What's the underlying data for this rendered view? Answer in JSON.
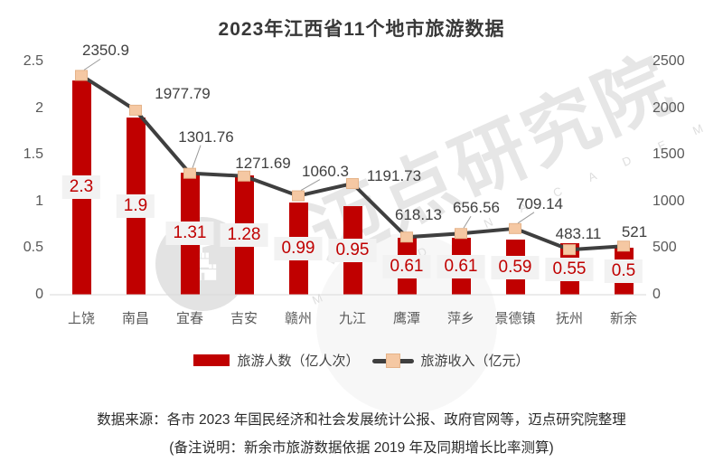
{
  "title": "2023年江西省11个地市旅游数据",
  "chart_data": {
    "type": "bar",
    "subtype": "bar-line-combo",
    "categories": [
      "上饶",
      "南昌",
      "宜春",
      "吉安",
      "赣州",
      "九江",
      "鹰潭",
      "萍乡",
      "景德镇",
      "抚州",
      "新余"
    ],
    "series": [
      {
        "name": "旅游人数（亿人次）",
        "type": "bar",
        "axis": "left",
        "values": [
          2.3,
          1.9,
          1.31,
          1.28,
          0.99,
          0.95,
          0.61,
          0.61,
          0.59,
          0.55,
          0.5
        ],
        "color": "#c00000"
      },
      {
        "name": "旅游收入（亿元）",
        "type": "line",
        "axis": "right",
        "values": [
          2350.9,
          1977.79,
          1301.76,
          1271.69,
          1060.3,
          1191.73,
          618.13,
          656.56,
          709.14,
          483.11,
          521
        ],
        "color": "#3f3f3f",
        "marker_color": "#f5c8a3"
      }
    ],
    "left_axis": {
      "min": 0,
      "max": 2.5,
      "step": 0.5,
      "ticks": [
        "2.5",
        "2",
        "1.5",
        "1",
        "0.5",
        "0"
      ]
    },
    "right_axis": {
      "min": 0,
      "max": 2500,
      "step": 500,
      "ticks": [
        "2500",
        "2000",
        "1500",
        "1000",
        "500",
        "0"
      ]
    },
    "grid": false,
    "legend_position": "bottom",
    "bar_label_style": {
      "background": "#f2f2f2",
      "text_color": "#c00000"
    },
    "line_label_color": "#404040"
  },
  "footer": {
    "line1": "数据来源：各市 2023 年国民经济和社会发展统计公报、政府官网等，迈点研究院整理",
    "line2": "(备注说明：新余市旅游数据依据 2019 年及同期增长比率测算)"
  },
  "watermark": {
    "text": "迈点研究院",
    "subtext": "M E A D I N  A C A D E M Y",
    "logo": "castle-icon"
  }
}
